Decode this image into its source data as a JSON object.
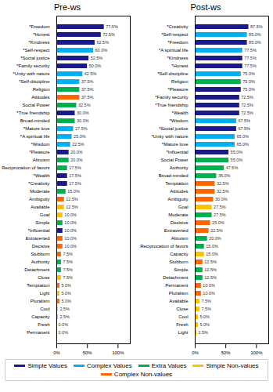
{
  "chart_data": [
    {
      "type": "bar",
      "title": "Pre-ws",
      "orientation": "horizontal",
      "data_labels": true,
      "grid": false,
      "legend": "bottom",
      "categories": [
        "*Freedom",
        "*Honest",
        "*Kindness",
        "*Self-respect",
        "*Social justice",
        "*Family security",
        "*Unity with nature",
        "*Self-discipline",
        "Religion",
        "Attitudes",
        "Social Power",
        "*True friendship",
        "Broad-minded",
        "*Mature love",
        "*A spiritual life",
        "*Wisdom",
        "*Pleasure",
        "Altruism",
        "Reciprocation of favors",
        "*Wealth",
        "*Creativity",
        "Moderate",
        "Ambiguity",
        "Available",
        "Goal",
        "Simple",
        "*Influential",
        "Extraverted",
        "Decisive",
        "Stubborn",
        "Authority",
        "Detachment",
        "Close",
        "Temptation",
        "Light",
        "Pluralism",
        "Cool",
        "Capacity",
        "Fresh",
        "Permanent"
      ],
      "xlim": [
        0,
        120
      ],
      "xticks": [
        {
          "value": 0,
          "label": "0%"
        },
        {
          "value": 50,
          "label": "50%"
        },
        {
          "value": 100,
          "label": "100%"
        }
      ],
      "series": [
        {
          "name": "Simple Values",
          "color": "#1a1a8c",
          "values": [
            77.5,
            72.5,
            62.5,
            null,
            52.5,
            50.0,
            null,
            null,
            null,
            null,
            null,
            30.0,
            null,
            null,
            null,
            null,
            20.0,
            null,
            null,
            17.5,
            17.5,
            null,
            null,
            null,
            null,
            null,
            10.0,
            null,
            null,
            null,
            null,
            null,
            null,
            null,
            null,
            null,
            null,
            null,
            null,
            null
          ],
          "value_labels": [
            "77.5%",
            "72.5%",
            "62.5%",
            null,
            "52.5%",
            "50.0%",
            null,
            null,
            null,
            null,
            null,
            "30.0%",
            null,
            null,
            null,
            null,
            "20.0%",
            null,
            null,
            "17.5%",
            "17.5%",
            null,
            null,
            null,
            null,
            null,
            "10.0%",
            null,
            null,
            null,
            null,
            null,
            null,
            null,
            null,
            null,
            null,
            null,
            null,
            null
          ]
        },
        {
          "name": "Complex Values",
          "color": "#00b0f0",
          "values": [
            null,
            null,
            null,
            60.0,
            null,
            null,
            42.5,
            37.5,
            null,
            null,
            null,
            null,
            null,
            27.5,
            25.0,
            22.5,
            null,
            null,
            null,
            null,
            null,
            null,
            null,
            null,
            null,
            null,
            null,
            null,
            null,
            null,
            null,
            null,
            null,
            null,
            null,
            null,
            null,
            null,
            null,
            null
          ],
          "value_labels": [
            null,
            null,
            null,
            "60.0%",
            null,
            null,
            "42.5%",
            "37.5%",
            null,
            null,
            null,
            null,
            null,
            "27.5%",
            "25.0%",
            "22.5%",
            null,
            null,
            null,
            null,
            null,
            null,
            null,
            null,
            null,
            null,
            null,
            null,
            null,
            null,
            null,
            null,
            null,
            null,
            null,
            null,
            null,
            null,
            null,
            null
          ]
        },
        {
          "name": "Extra Values",
          "color": "#00b050",
          "values": [
            null,
            null,
            null,
            null,
            null,
            null,
            null,
            null,
            37.5,
            null,
            32.5,
            null,
            30.0,
            null,
            null,
            null,
            null,
            20.0,
            17.5,
            null,
            null,
            15.0,
            null,
            null,
            null,
            10.0,
            null,
            null,
            null,
            null,
            7.5,
            7.5,
            null,
            null,
            null,
            null,
            null,
            null,
            null,
            null
          ],
          "value_labels": [
            null,
            null,
            null,
            null,
            null,
            null,
            null,
            null,
            "37.5%",
            null,
            "32.5%",
            null,
            "30.0%",
            null,
            null,
            null,
            null,
            "20.0%",
            "17.5%",
            null,
            null,
            "15.0%",
            null,
            null,
            null,
            "10.0%",
            null,
            null,
            null,
            null,
            "7.5%",
            "7.5%",
            null,
            null,
            null,
            null,
            null,
            null,
            null,
            null
          ]
        },
        {
          "name": "Simple Non-values",
          "color": "#ffc000",
          "values": [
            null,
            null,
            null,
            null,
            null,
            null,
            null,
            null,
            null,
            null,
            null,
            null,
            null,
            null,
            null,
            null,
            null,
            null,
            null,
            null,
            null,
            null,
            null,
            12.5,
            10.0,
            null,
            null,
            null,
            null,
            null,
            null,
            null,
            7.5,
            null,
            5.0,
            null,
            2.5,
            2.5,
            0.0,
            0.0
          ],
          "value_labels": [
            null,
            null,
            null,
            null,
            null,
            null,
            null,
            null,
            null,
            null,
            null,
            null,
            null,
            null,
            null,
            null,
            null,
            null,
            null,
            null,
            null,
            null,
            null,
            "12.5%",
            "10.0%",
            null,
            null,
            null,
            null,
            null,
            null,
            null,
            "7.5%",
            null,
            "5.0%",
            null,
            "2.5%",
            "2.5%",
            "0.0%",
            "0.0%"
          ]
        },
        {
          "name": "Complex Non-values",
          "color": "#ff6600",
          "values": [
            null,
            null,
            null,
            null,
            null,
            null,
            null,
            null,
            null,
            37.5,
            null,
            null,
            null,
            null,
            null,
            null,
            null,
            null,
            null,
            null,
            null,
            null,
            12.5,
            null,
            null,
            null,
            null,
            10.0,
            10.0,
            7.5,
            null,
            null,
            null,
            5.0,
            null,
            5.0,
            null,
            null,
            null,
            null
          ],
          "value_labels": [
            null,
            null,
            null,
            null,
            null,
            null,
            null,
            null,
            null,
            "37.5%",
            null,
            null,
            null,
            null,
            null,
            null,
            null,
            null,
            null,
            null,
            null,
            null,
            "12.5%",
            null,
            null,
            null,
            null,
            "10.0%",
            "10.0%",
            "7.5%",
            null,
            null,
            null,
            "5.0%",
            null,
            "5.0%",
            null,
            null,
            null,
            null
          ]
        }
      ]
    },
    {
      "type": "bar",
      "title": "Post-ws",
      "orientation": "horizontal",
      "data_labels": true,
      "grid": false,
      "legend": "bottom",
      "categories": [
        "*Creativity",
        "*Self-respect",
        "*Freedom",
        "*A spiritual life",
        "*Kindness",
        "*Honest",
        "*Self-discipline",
        "Religion",
        "*Pleasure",
        "*Family security",
        "*True friendship",
        "*Wealth",
        "*Wisdom",
        "*Social justice",
        "*Unity with nature",
        "*Mature love",
        "*Influential",
        "Social Power",
        "Authority",
        "Broad-minded",
        "Temptation",
        "Attitudes",
        "Ambiguity",
        "Goal",
        "Moderate",
        "Decisive",
        "Extraverted",
        "Altruism",
        "Reciprocation of favors",
        "Capacity",
        "Stubborn",
        "Simple",
        "Detachment",
        "Permanent",
        "Pluralism",
        "Available",
        "Close",
        "Cool",
        "Fresh",
        "Light"
      ],
      "xlim": [
        0,
        120
      ],
      "xticks": [
        {
          "value": 0,
          "label": "0%"
        },
        {
          "value": 50,
          "label": "50%"
        },
        {
          "value": 100,
          "label": "100%"
        }
      ],
      "series": [
        {
          "name": "Simple Values",
          "color": "#1a1a8c",
          "values": [
            87.5,
            null,
            85.0,
            null,
            77.5,
            77.5,
            null,
            null,
            75.0,
            72.5,
            72.5,
            72.5,
            null,
            67.5,
            null,
            null,
            55.0,
            null,
            null,
            null,
            null,
            null,
            null,
            null,
            null,
            null,
            null,
            null,
            null,
            null,
            null,
            null,
            null,
            null,
            null,
            null,
            null,
            null,
            null,
            null
          ],
          "value_labels": [
            "87.5%",
            null,
            "85.0%",
            null,
            "77.5%",
            "77.5%",
            null,
            null,
            "75.0%",
            "72.5%",
            "72.5%",
            "72.5%",
            null,
            "67.5%",
            null,
            null,
            "55.0%",
            null,
            null,
            null,
            null,
            null,
            null,
            null,
            null,
            null,
            null,
            null,
            null,
            null,
            null,
            null,
            null,
            null,
            null,
            null,
            null,
            null,
            null,
            null
          ]
        },
        {
          "name": "Complex Values",
          "color": "#00b0f0",
          "values": [
            null,
            85.0,
            null,
            77.5,
            null,
            null,
            75.0,
            null,
            null,
            null,
            null,
            null,
            67.5,
            null,
            65.0,
            65.0,
            null,
            null,
            null,
            null,
            null,
            null,
            null,
            null,
            null,
            null,
            null,
            null,
            null,
            null,
            null,
            null,
            null,
            null,
            null,
            null,
            null,
            null,
            null,
            null
          ],
          "value_labels": [
            null,
            "85.0%",
            null,
            "77.5%",
            null,
            null,
            "75.0%",
            null,
            null,
            null,
            null,
            null,
            "67.5%",
            null,
            "65.0%",
            "65.0%",
            null,
            null,
            null,
            null,
            null,
            null,
            null,
            null,
            null,
            null,
            null,
            null,
            null,
            null,
            null,
            null,
            null,
            null,
            null,
            null,
            null,
            null,
            null,
            null
          ]
        },
        {
          "name": "Extra Values",
          "color": "#00b050",
          "values": [
            null,
            null,
            null,
            null,
            null,
            null,
            null,
            75.0,
            null,
            null,
            null,
            null,
            null,
            null,
            null,
            null,
            null,
            55.0,
            47.5,
            35.0,
            null,
            null,
            null,
            null,
            27.5,
            null,
            null,
            20.0,
            15.0,
            null,
            null,
            12.5,
            12.5,
            null,
            null,
            null,
            null,
            null,
            null,
            null
          ],
          "value_labels": [
            null,
            null,
            null,
            null,
            null,
            null,
            null,
            "75.0%",
            null,
            null,
            null,
            null,
            null,
            null,
            null,
            null,
            null,
            "55.0%",
            "47.5%",
            "35.0%",
            null,
            null,
            null,
            null,
            "27.5%",
            null,
            null,
            "20.0%",
            "15.0%",
            null,
            null,
            "12.5%",
            "12.5%",
            null,
            null,
            null,
            null,
            null,
            null,
            null
          ]
        },
        {
          "name": "Simple Non-values",
          "color": "#ffc000",
          "values": [
            null,
            null,
            null,
            null,
            null,
            null,
            null,
            null,
            null,
            null,
            null,
            null,
            null,
            null,
            null,
            null,
            null,
            null,
            null,
            null,
            null,
            null,
            null,
            27.5,
            null,
            null,
            null,
            null,
            null,
            15.0,
            null,
            null,
            null,
            null,
            null,
            7.5,
            7.5,
            5.0,
            5.0,
            2.5
          ],
          "value_labels": [
            null,
            null,
            null,
            null,
            null,
            null,
            null,
            null,
            null,
            null,
            null,
            null,
            null,
            null,
            null,
            null,
            null,
            null,
            null,
            null,
            null,
            null,
            null,
            "27.5%",
            null,
            null,
            null,
            null,
            null,
            "15.0%",
            null,
            null,
            null,
            null,
            null,
            "7.5%",
            "7.5%",
            "5.0%",
            "5.0%",
            "2.5%"
          ]
        },
        {
          "name": "Complex Non-values",
          "color": "#ff6600",
          "values": [
            null,
            null,
            null,
            null,
            null,
            null,
            null,
            null,
            null,
            null,
            null,
            null,
            null,
            null,
            null,
            null,
            null,
            null,
            null,
            null,
            32.5,
            32.5,
            30.0,
            null,
            null,
            25.0,
            22.5,
            null,
            null,
            null,
            12.5,
            null,
            null,
            10.0,
            10.0,
            null,
            null,
            null,
            null,
            null
          ],
          "value_labels": [
            null,
            null,
            null,
            null,
            null,
            null,
            null,
            null,
            null,
            null,
            null,
            null,
            null,
            null,
            null,
            null,
            null,
            null,
            null,
            null,
            "32.5%",
            "32.5%",
            "30.0%",
            null,
            null,
            "25.0%",
            "22.5%",
            null,
            null,
            null,
            "12.5%",
            null,
            null,
            "10.0%",
            "10.0%",
            null,
            null,
            null,
            null,
            null
          ]
        }
      ]
    }
  ]
}
